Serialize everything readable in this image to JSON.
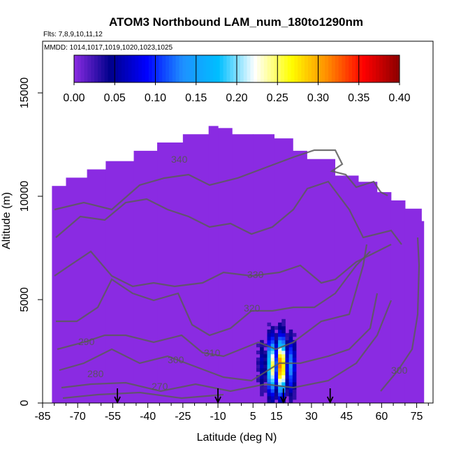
{
  "chart_data": {
    "type": "heatmap",
    "title": "ATOM3 Northbound LAM_num_180to1290nm",
    "subtitle_flights": "Flts: 7,8,9,10,11,12",
    "subtitle_dates": "MMDD: 1014,1017,1019,1020,1023,1025",
    "xlabel": "Latitude (deg N)",
    "ylabel": "Altitude (m)",
    "xlim": [
      -85,
      82
    ],
    "ylim": [
      0,
      17500
    ],
    "x_ticks": [
      -85,
      -70,
      -55,
      -40,
      -25,
      -10,
      5,
      15,
      30,
      45,
      60,
      75
    ],
    "y_ticks": [
      0,
      5000,
      10000,
      15000
    ],
    "colorbar": {
      "min": 0.0,
      "max": 0.4,
      "ticks": [
        "0.00",
        "0.05",
        "0.10",
        "0.15",
        "0.20",
        "0.25",
        "0.30",
        "0.35",
        "0.40"
      ],
      "colors": [
        "#8a2be2",
        "#00008b",
        "#0000ff",
        "#1e90ff",
        "#00bfff",
        "#ffffff",
        "#ffff00",
        "#ff8c00",
        "#ff0000",
        "#8b0000"
      ]
    },
    "background_value": 0.0,
    "coverage": [
      [
        -81,
        10500
      ],
      [
        -75,
        10900
      ],
      [
        -66,
        11300
      ],
      [
        -58,
        11700
      ],
      [
        -46,
        12200
      ],
      [
        -36,
        12600
      ],
      [
        -25,
        13000
      ],
      [
        -14,
        13400
      ],
      [
        -10,
        13300
      ],
      [
        -4,
        13000
      ],
      [
        5,
        13000
      ],
      [
        14,
        12800
      ],
      [
        22,
        12200
      ],
      [
        28,
        11800
      ],
      [
        40,
        11000
      ],
      [
        50,
        10700
      ],
      [
        58,
        10200
      ],
      [
        64,
        9800
      ],
      [
        70,
        9400
      ],
      [
        77,
        8800
      ],
      [
        78,
        7500
      ]
    ],
    "hotspot": {
      "x_range": [
        -6,
        25
      ],
      "y_range": [
        0,
        4400
      ],
      "peak": {
        "x": 16,
        "y": 1800,
        "value": 0.31
      }
    },
    "isentrope_labels": [
      "340",
      "330",
      "320",
      "310",
      "300",
      "290",
      "280",
      "270",
      "300"
    ],
    "flight_markers_lat": [
      -53,
      -10,
      18,
      38
    ]
  }
}
